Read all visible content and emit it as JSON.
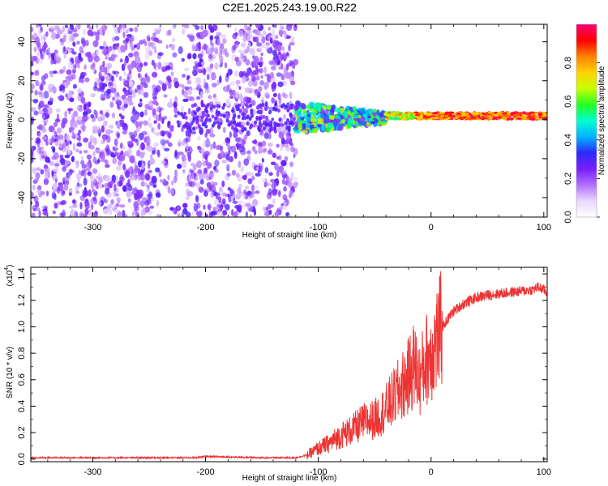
{
  "figure_title": "C2E1.2025.243.19.00.R22",
  "chart_data": [
    {
      "type": "heatmap",
      "name": "spectrogram",
      "xlabel": "Height of straight line (km)",
      "ylabel": "Frequency (Hz)",
      "xlim": [
        -355,
        103
      ],
      "ylim": [
        -50,
        49
      ],
      "xticks": [
        -300,
        -200,
        -100,
        0,
        100
      ],
      "xtick_labels": [
        "-300",
        "-200",
        "-100",
        "0",
        "100"
      ],
      "yticks": [
        -40,
        -20,
        0,
        20,
        40
      ],
      "ytick_labels": [
        "-40",
        "-20",
        "0",
        "20",
        "40"
      ],
      "colorbar": {
        "label": "Normalized spectral amplitude",
        "range": [
          0,
          1
        ],
        "ticks": [
          0.0,
          0.2,
          0.4,
          0.6,
          0.8
        ],
        "tick_labels": [
          "0.0",
          "0.2",
          "0.4",
          "0.6",
          "0.8"
        ],
        "colors": [
          "#ffffff",
          "#e8d8ff",
          "#b070ff",
          "#7a1eff",
          "#2a2aff",
          "#00b4ff",
          "#00ffd0",
          "#22ff22",
          "#c8ff00",
          "#ffd200",
          "#ff8000",
          "#ff0000",
          "#ff0078"
        ]
      },
      "regions": [
        {
          "x_range": [
            -355,
            -120
          ],
          "f_range": [
            -50,
            49
          ],
          "level": "0.05-0.3",
          "description": "scattered noise"
        },
        {
          "x_range": [
            -120,
            -40
          ],
          "f_center": 1,
          "f_spread": 8,
          "level": "0.2-0.6"
        },
        {
          "x_range": [
            -40,
            103
          ],
          "f_center": 2,
          "f_spread": 2,
          "level": "0.6-1.0"
        }
      ]
    },
    {
      "type": "line",
      "name": "snr",
      "xlabel": "Height of straight line (km)",
      "ylabel": "SNR (10 * v/v)",
      "y_multiplier_label": "(x10",
      "y_multiplier_exp": "4",
      "y_multiplier_close": ")",
      "xlim": [
        -355,
        103
      ],
      "ylim": [
        -0.02,
        1.45
      ],
      "xticks": [
        -300,
        -200,
        -100,
        0,
        100
      ],
      "xtick_labels": [
        "-300",
        "-200",
        "-100",
        "0",
        "100"
      ],
      "yticks": [
        0.0,
        0.2,
        0.4,
        0.6,
        0.8,
        1.0,
        1.2,
        1.4
      ],
      "ytick_labels": [
        "0.0",
        "0.2",
        "0.4",
        "0.6",
        "0.8",
        "1.0",
        "1.2",
        "1.4"
      ],
      "color": "#ee3333",
      "series": [
        {
          "name": "SNR",
          "x": [
            -355,
            -300,
            -250,
            -210,
            -200,
            -150,
            -120,
            -110,
            -100,
            -90,
            -80,
            -70,
            -60,
            -50,
            -40,
            -30,
            -20,
            -15,
            -10,
            -5,
            0,
            5,
            10,
            20,
            30,
            40,
            50,
            60,
            70,
            80,
            90,
            95,
            100,
            103
          ],
          "y": [
            0.01,
            0.01,
            0.01,
            0.01,
            0.02,
            0.01,
            0.01,
            0.03,
            0.08,
            0.12,
            0.18,
            0.22,
            0.28,
            0.3,
            0.38,
            0.5,
            0.62,
            0.72,
            0.6,
            0.75,
            0.8,
            0.9,
            1.0,
            1.12,
            1.18,
            1.22,
            1.24,
            1.25,
            1.26,
            1.27,
            1.28,
            1.3,
            1.28,
            1.25
          ]
        }
      ]
    }
  ]
}
